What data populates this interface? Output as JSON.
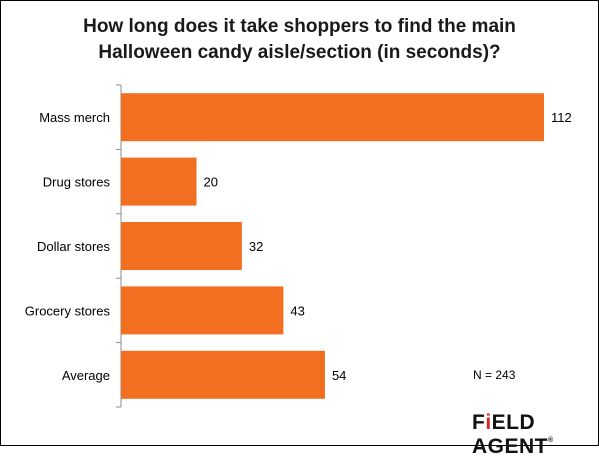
{
  "title_line1": "How long does it take shoppers to find the main",
  "title_line2": "Halloween candy aisle/section (in seconds)?",
  "chart_data": {
    "type": "bar",
    "orientation": "horizontal",
    "categories": [
      "Mass merch",
      "Drug stores",
      "Dollar stores",
      "Grocery stores",
      "Average"
    ],
    "values": [
      112,
      20,
      32,
      43,
      54
    ],
    "xlim": [
      0,
      112
    ],
    "grid": false,
    "bar_color": "#f26f21"
  },
  "note": "N = 243",
  "logo": {
    "part1": "F",
    "part2": "i",
    "part3": "ELD AGENT",
    "mark": "®"
  }
}
